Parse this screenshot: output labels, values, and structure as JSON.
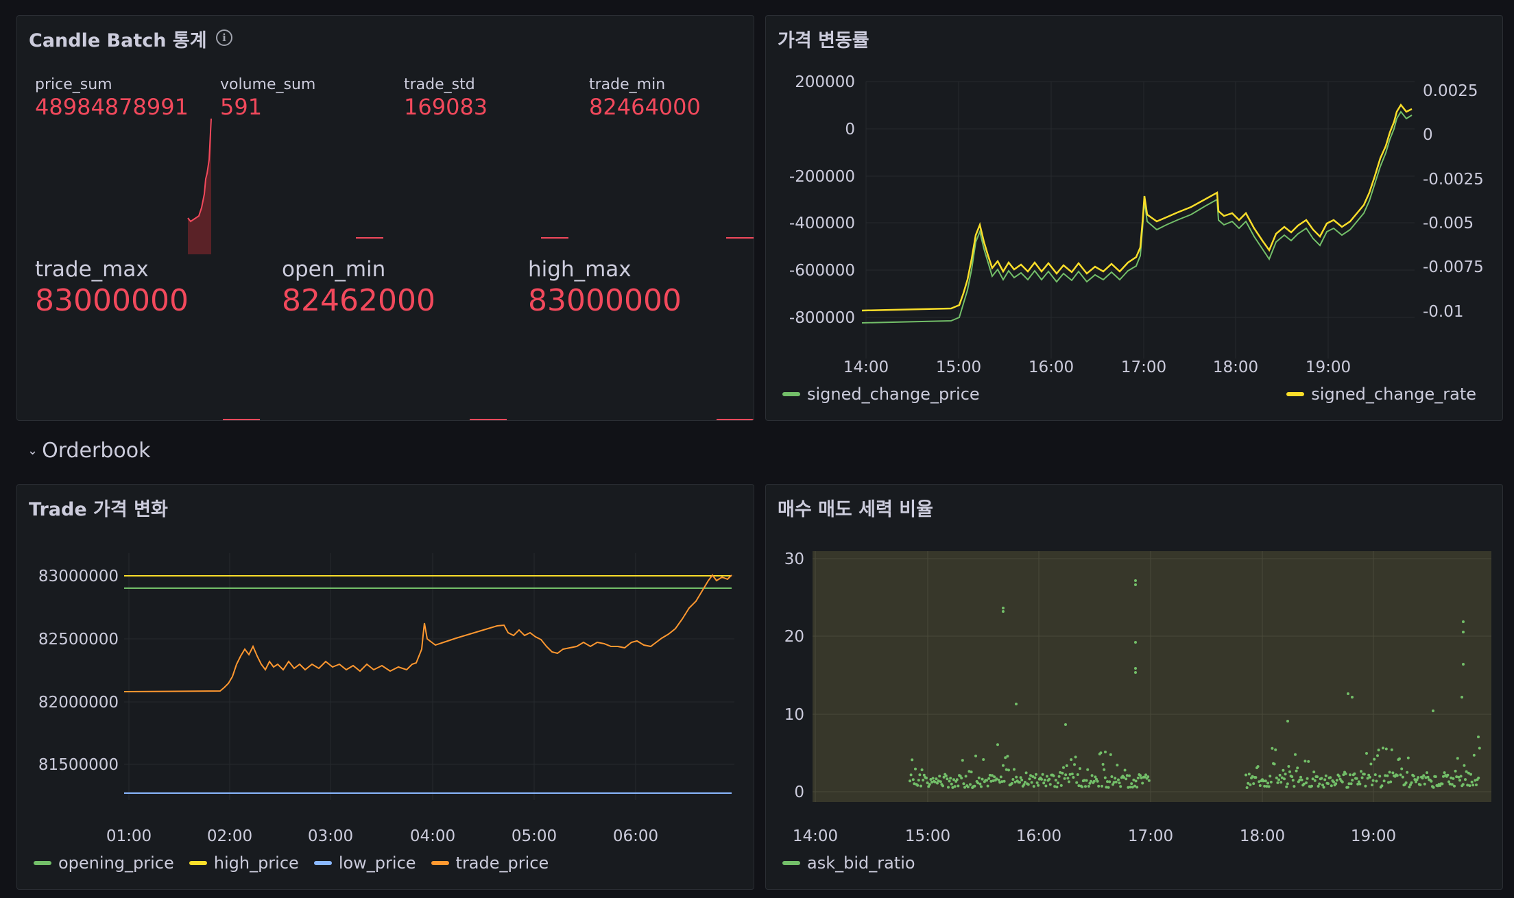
{
  "panels": {
    "candle_stats": {
      "title": "Candle Batch 통계",
      "info_icon": "info-icon",
      "stats_top": [
        {
          "label": "price_sum",
          "value": "48984878991"
        },
        {
          "label": "volume_sum",
          "value": "591"
        },
        {
          "label": "trade_std",
          "value": "169083"
        },
        {
          "label": "trade_min",
          "value": "82464000"
        }
      ],
      "stats_bottom": [
        {
          "label": "trade_max",
          "value": "83000000"
        },
        {
          "label": "open_min",
          "value": "82462000"
        },
        {
          "label": "high_max",
          "value": "83000000"
        }
      ],
      "value_color": "#f2495c"
    },
    "price_change": {
      "title": "가격 변동률",
      "left_axis_ticks": [
        "200000",
        "0",
        "-200000",
        "-400000",
        "-600000",
        "-800000"
      ],
      "right_axis_ticks": [
        "0.0025",
        "0",
        "-0.0025",
        "-0.005",
        "-0.0075",
        "-0.01"
      ],
      "x_ticks": [
        "14:00",
        "15:00",
        "16:00",
        "17:00",
        "18:00",
        "19:00"
      ],
      "legend": [
        {
          "name": "signed_change_price",
          "color": "#73bf69"
        },
        {
          "name": "signed_change_rate",
          "color": "#fade2a"
        }
      ]
    },
    "orderbook_row": {
      "label": "Orderbook",
      "icon": "chevron-down-icon"
    },
    "trade_price": {
      "title": "Trade 가격 변화",
      "y_ticks": [
        "83000000",
        "82500000",
        "82000000",
        "81500000"
      ],
      "x_ticks": [
        "01:00",
        "02:00",
        "03:00",
        "04:00",
        "05:00",
        "06:00"
      ],
      "legend": [
        {
          "name": "opening_price",
          "color": "#73bf69"
        },
        {
          "name": "high_price",
          "color": "#fade2a"
        },
        {
          "name": "low_price",
          "color": "#8ab8ff"
        },
        {
          "name": "trade_price",
          "color": "#ff9830"
        }
      ]
    },
    "ask_bid": {
      "title": "매수 매도 세력 비율",
      "y_ticks": [
        "30",
        "20",
        "10",
        "0"
      ],
      "x_ticks": [
        "14:00",
        "15:00",
        "16:00",
        "17:00",
        "18:00",
        "19:00"
      ],
      "legend": [
        {
          "name": "ask_bid_ratio",
          "color": "#73bf69"
        }
      ]
    }
  }
}
